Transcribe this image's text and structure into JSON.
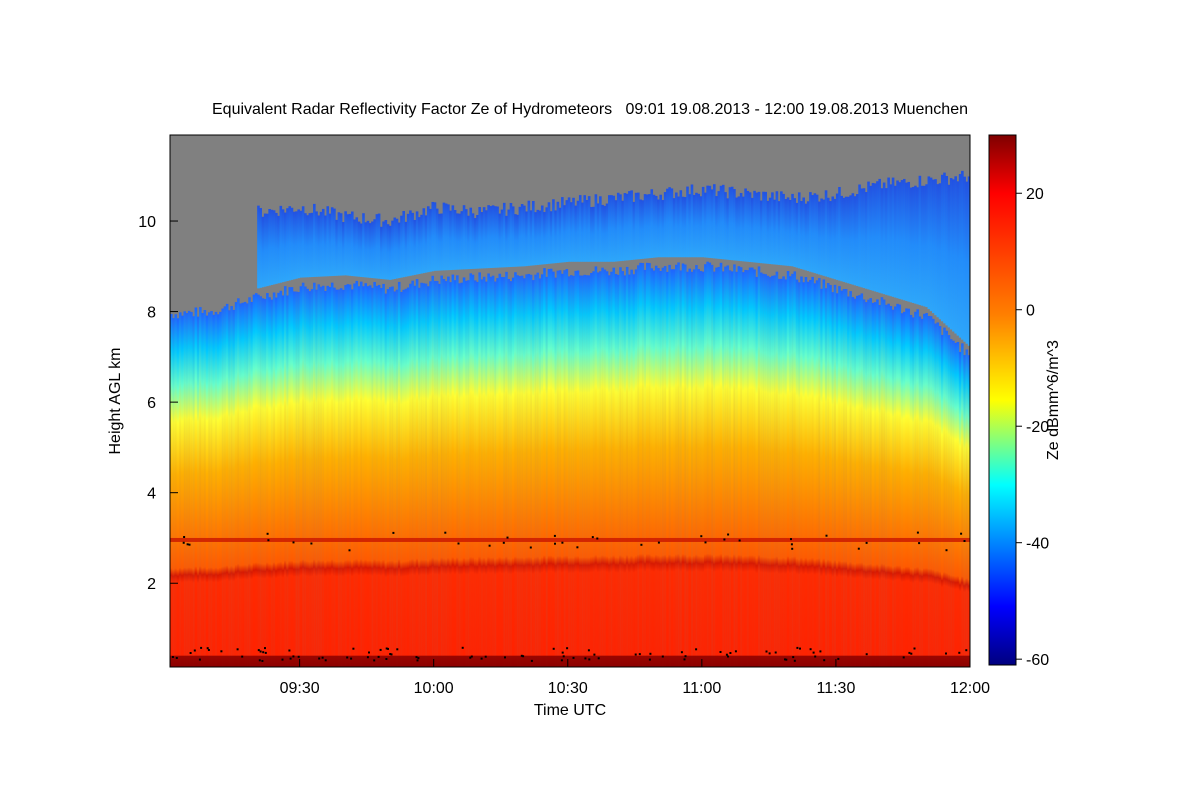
{
  "chart_data": {
    "type": "heatmap",
    "title": "Equivalent Radar Reflectivity Factor Ze of Hydrometeors   09:01 19.08.2013 - 12:00 19.08.2013 Muenchen",
    "xlabel": "Time UTC",
    "ylabel": "Height AGL km",
    "x_ticks": [
      "09:30",
      "10:00",
      "10:30",
      "11:00",
      "11:30",
      "12:00"
    ],
    "xlim": [
      "09:01",
      "12:00"
    ],
    "y_ticks": [
      2,
      4,
      6,
      8,
      10
    ],
    "ylim": [
      0.15,
      11.9
    ],
    "colorbar": {
      "label": "Ze dBmm^6/m^3",
      "ticks": [
        20,
        0,
        -20,
        -40,
        -60
      ],
      "range": [
        -61,
        30
      ],
      "colormap": "jet"
    },
    "colors": {
      "no_signal": "#808080",
      "speckle": "#000000"
    },
    "echo_top_km": [
      {
        "time": "09:01",
        "top_km": 7.95,
        "cirrus_top_km": null
      },
      {
        "time": "09:10",
        "top_km": 8.0,
        "cirrus_top_km": null
      },
      {
        "time": "09:20",
        "top_km": 8.3,
        "cirrus_top_km": 10.2
      },
      {
        "time": "09:30",
        "top_km": 8.55,
        "cirrus_top_km": 10.3
      },
      {
        "time": "09:40",
        "top_km": 8.6,
        "cirrus_top_km": 10.1
      },
      {
        "time": "09:50",
        "top_km": 8.5,
        "cirrus_top_km": 10.0
      },
      {
        "time": "10:00",
        "top_km": 8.7,
        "cirrus_top_km": 10.3
      },
      {
        "time": "10:10",
        "top_km": 8.75,
        "cirrus_top_km": 10.2
      },
      {
        "time": "10:20",
        "top_km": 8.8,
        "cirrus_top_km": 10.3
      },
      {
        "time": "10:30",
        "top_km": 8.9,
        "cirrus_top_km": 10.4
      },
      {
        "time": "10:40",
        "top_km": 8.9,
        "cirrus_top_km": 10.5
      },
      {
        "time": "10:50",
        "top_km": 9.0,
        "cirrus_top_km": 10.6
      },
      {
        "time": "11:00",
        "top_km": 9.0,
        "cirrus_top_km": 10.7
      },
      {
        "time": "11:10",
        "top_km": 8.9,
        "cirrus_top_km": 10.6
      },
      {
        "time": "11:20",
        "top_km": 8.8,
        "cirrus_top_km": 10.5
      },
      {
        "time": "11:30",
        "top_km": 8.5,
        "cirrus_top_km": 10.6
      },
      {
        "time": "11:40",
        "top_km": 8.2,
        "cirrus_top_km": 10.8
      },
      {
        "time": "11:50",
        "top_km": 7.9,
        "cirrus_top_km": 10.9
      },
      {
        "time": "12:00",
        "top_km": 7.0,
        "cirrus_top_km": 11.0
      }
    ],
    "melting_layer_km": 2.95,
    "features": {
      "rain_band_ze_dbz": 20,
      "melting_layer_ze_dbz": 22,
      "surface_band_ze_dbz": 28
    }
  }
}
